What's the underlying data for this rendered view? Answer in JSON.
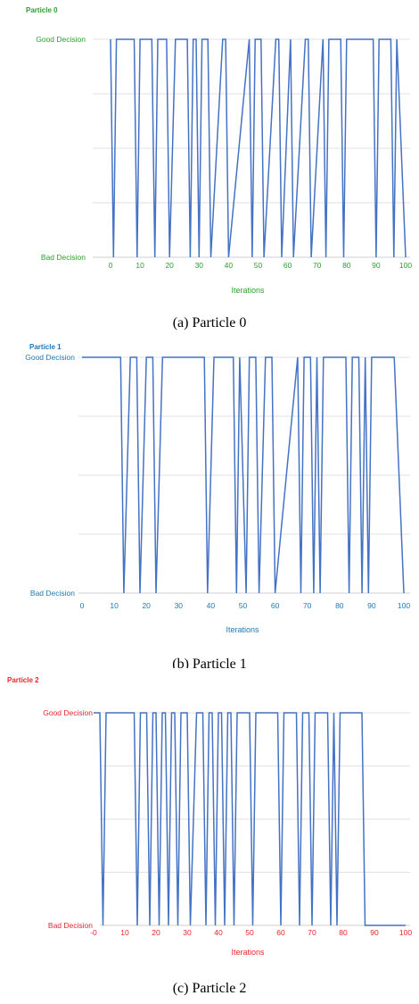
{
  "figures": [
    {
      "caption": "(a) Particle 0",
      "accent": "#2ca02c",
      "chart_data": {
        "type": "line",
        "title": "Particle 0",
        "xlabel": "Iterations",
        "ylabel": "",
        "xlim": [
          0,
          100
        ],
        "x_ticks": [
          "0",
          "10",
          "20",
          "30",
          "40",
          "50",
          "60",
          "70",
          "80",
          "90",
          "100"
        ],
        "y_categories": [
          "Bad Decision",
          "Good Decision"
        ],
        "line_color": "#4472c4",
        "grid": true,
        "series": [
          {
            "x": [
              0,
              1,
              2,
              8,
              9,
              10,
              14,
              15,
              16,
              19,
              20,
              22,
              23,
              26,
              27,
              28,
              29,
              30,
              31,
              33,
              34,
              38,
              39,
              40,
              47,
              48,
              49,
              51,
              52,
              56,
              57,
              58,
              61,
              62,
              66,
              67,
              68,
              72,
              73,
              74,
              78,
              79,
              80,
              89,
              90,
              91,
              95,
              96,
              97,
              100
            ],
            "y": [
              1,
              0,
              1,
              1,
              0,
              1,
              1,
              0,
              1,
              1,
              0,
              1,
              1,
              1,
              0,
              1,
              1,
              0,
              1,
              1,
              0,
              1,
              1,
              0,
              1,
              0,
              1,
              1,
              0,
              1,
              1,
              0,
              1,
              0,
              1,
              1,
              0,
              1,
              0,
              1,
              1,
              0,
              1,
              1,
              0,
              1,
              1,
              0,
              1,
              0
            ]
          }
        ]
      }
    },
    {
      "caption": "(b) Particle 1",
      "accent": "#1f77b4",
      "chart_data": {
        "type": "line",
        "title": "Particle 1",
        "xlabel": "Iterations",
        "ylabel": "",
        "xlim": [
          0,
          100
        ],
        "x_ticks": [
          "0",
          "10",
          "20",
          "30",
          "40",
          "50",
          "60",
          "70",
          "80",
          "90",
          "100"
        ],
        "y_categories": [
          "Bad Decision",
          "Good Decision"
        ],
        "line_color": "#4472c4",
        "grid": true,
        "series": [
          {
            "x": [
              0,
              12,
              13,
              15,
              17,
              18,
              20,
              22,
              23,
              25,
              38,
              39,
              41,
              47,
              48,
              49,
              51,
              52,
              54,
              55,
              57,
              59,
              60,
              67,
              68,
              69,
              71,
              72,
              73,
              74,
              75,
              76,
              82,
              83,
              84,
              86,
              87,
              88,
              89,
              90,
              91,
              97,
              100
            ],
            "y": [
              1,
              1,
              0,
              1,
              1,
              0,
              1,
              1,
              0,
              1,
              1,
              0,
              1,
              1,
              0,
              1,
              0,
              1,
              1,
              0,
              1,
              1,
              0,
              1,
              0,
              1,
              1,
              0,
              1,
              0,
              1,
              1,
              1,
              0,
              1,
              1,
              0,
              1,
              0,
              1,
              1,
              1,
              0
            ]
          }
        ]
      }
    },
    {
      "caption": "(c) Particle 2",
      "accent": "#e8242b",
      "chart_data": {
        "type": "line",
        "title": "Particle 2",
        "xlabel": "Iterations",
        "ylabel": "",
        "xlim": [
          0,
          100
        ],
        "x_ticks": [
          "-0",
          "10",
          "20",
          "30",
          "40",
          "50",
          "60",
          "70",
          "80",
          "90",
          "100"
        ],
        "y_categories": [
          "Bad Decision",
          "Good Decision"
        ],
        "line_color": "#4472c4",
        "grid": true,
        "series": [
          {
            "x": [
              0,
              2,
              3,
              4,
              13,
              14,
              15,
              17,
              18,
              19,
              20,
              21,
              22,
              23,
              24,
              25,
              26,
              27,
              28,
              30,
              31,
              33,
              34,
              35,
              36,
              37,
              38,
              39,
              40,
              41,
              42,
              43,
              44,
              45,
              46,
              50,
              51,
              52,
              59,
              60,
              61,
              65,
              66,
              67,
              69,
              70,
              71,
              75,
              76,
              77,
              78,
              79,
              80,
              86,
              87,
              100
            ],
            "y": [
              1,
              1,
              0,
              1,
              1,
              0,
              1,
              1,
              0,
              1,
              1,
              0,
              1,
              1,
              0,
              1,
              1,
              0,
              1,
              1,
              0,
              1,
              1,
              1,
              0,
              1,
              1,
              0,
              1,
              1,
              0,
              1,
              1,
              0,
              1,
              1,
              0,
              1,
              1,
              0,
              1,
              1,
              0,
              1,
              1,
              0,
              1,
              1,
              0,
              1,
              0,
              1,
              1,
              1,
              0,
              0
            ]
          }
        ]
      }
    }
  ]
}
